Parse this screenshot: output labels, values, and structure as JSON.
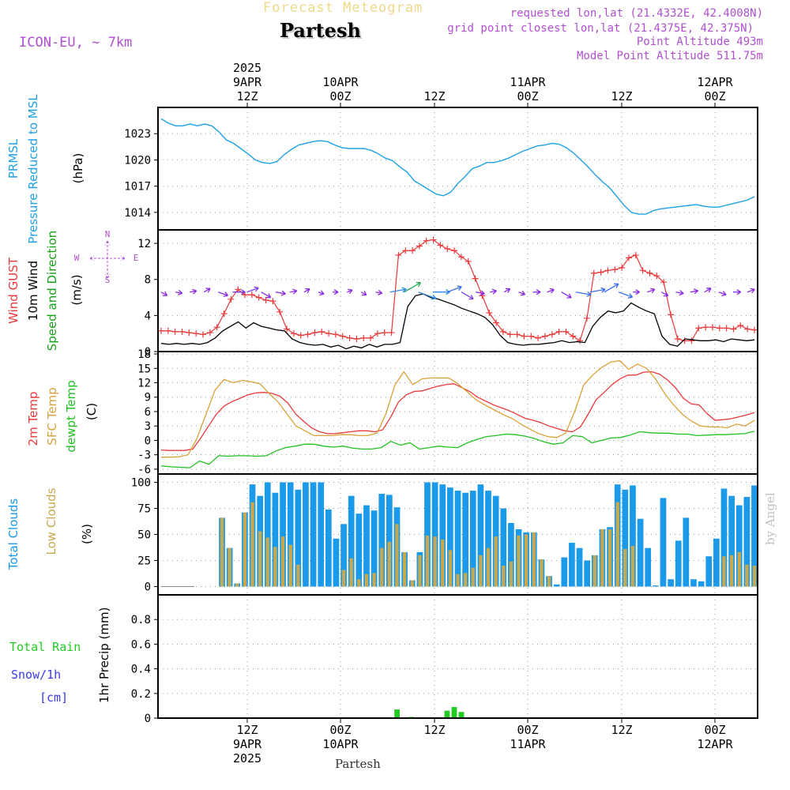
{
  "header": {
    "title": "Forecast Meteogram",
    "place": "Partesh",
    "model": "ICON-EU, ~ 7km",
    "requested": "requested lon,lat (21.4332E, 42.4008N)",
    "grid_point": "grid point closest lon,lat (21.4375E, 42.375N)",
    "point_altitude": "Point Altitude 493m",
    "model_altitude": "Model Point Altitude 511.75m",
    "footer_place": "Partesh",
    "watermark": "by Angel"
  },
  "colors": {
    "pressure": "#1ea0e6",
    "gust": "#e83a3a",
    "wind": "#000000",
    "direction": "#16a016",
    "temp": "#e83a3a",
    "sfc": "#d9a23a",
    "dewpt": "#22c022",
    "total_clouds": "#1a9ae8",
    "low_clouds": "#c8a84e",
    "rain": "#22cc22",
    "snow": "#3a3ae8",
    "purple": "#b050d0"
  },
  "chart_data": [
    {
      "type": "line",
      "panel": "pressure",
      "ylabel_left": [
        "PRMSL",
        "Pressure Reduced to MSL"
      ],
      "unit": "(hPa)",
      "ylim": [
        1012,
        1026
      ],
      "yticks": [
        1014,
        1017,
        1020,
        1023
      ],
      "grid": true,
      "series": [
        {
          "values": [
            1024.7,
            1024.2,
            1023.9,
            1023.9,
            1024.1,
            1023.9,
            1024.1,
            1023.9,
            1023.2,
            1022.3,
            1021.9,
            1021.3,
            1020.7,
            1020.0,
            1019.7,
            1019.6,
            1019.8,
            1020.6,
            1021.2,
            1021.7,
            1021.9,
            1022.1,
            1022.2,
            1022.1,
            1021.7,
            1021.4,
            1021.3,
            1021.3,
            1021.3,
            1021.1,
            1020.7,
            1020.2,
            1019.9,
            1019.2,
            1018.6,
            1017.6,
            1017.1,
            1016.6,
            1016.1,
            1015.9,
            1016.3,
            1017.3,
            1018.1,
            1019.0,
            1019.3,
            1019.7,
            1019.7,
            1019.9,
            1020.2,
            1020.6,
            1021.0,
            1021.3,
            1021.6,
            1021.7,
            1021.9,
            1021.8,
            1021.4,
            1020.8,
            1020.0,
            1019.2,
            1018.3,
            1017.5,
            1016.8,
            1015.8,
            1014.8,
            1014.0,
            1013.8,
            1013.8,
            1014.2,
            1014.4,
            1014.5,
            1014.6,
            1014.7,
            1014.8,
            1014.9,
            1014.7,
            1014.6,
            1014.6,
            1014.8,
            1015.0,
            1015.2,
            1015.4,
            1015.8
          ]
        }
      ]
    },
    {
      "type": "line",
      "panel": "wind",
      "ylabel_left": [
        "Wind GUST",
        "10m Wind",
        "Speed and Direction"
      ],
      "unit": "(m/s)",
      "compass": {
        "n": "N",
        "e": "E",
        "s": "S",
        "w": "W"
      },
      "ylim": [
        0,
        13.5
      ],
      "yticks": [
        0,
        4,
        8,
        12
      ],
      "grid": true,
      "series": [
        {
          "name": "Wind GUST",
          "values": [
            2.3,
            2.3,
            2.2,
            2.2,
            2.1,
            2.0,
            1.9,
            2.1,
            2.7,
            4.2,
            5.8,
            6.9,
            6.3,
            6.3,
            6.0,
            5.7,
            5.6,
            4.4,
            2.5,
            2.0,
            1.8,
            1.9,
            2.1,
            2.2,
            2.0,
            1.9,
            1.7,
            1.5,
            1.4,
            1.5,
            1.5,
            2.0,
            2.1,
            2.1,
            10.7,
            11.2,
            11.2,
            11.7,
            12.3,
            12.4,
            11.8,
            11.4,
            11.2,
            10.5,
            10.0,
            8.1,
            6.2,
            4.3,
            3.2,
            2.2,
            1.9,
            1.9,
            1.7,
            1.7,
            1.5,
            1.7,
            1.9,
            2.2,
            2.2,
            1.7,
            1.2,
            3.7,
            8.7,
            8.8,
            9.0,
            9.1,
            9.3,
            10.4,
            10.7,
            9.0,
            8.7,
            8.4,
            7.7,
            4.1,
            1.4,
            1.2,
            1.2,
            2.6,
            2.7,
            2.7,
            2.6,
            2.6,
            2.5,
            2.9,
            2.5,
            2.4
          ]
        },
        {
          "name": "10m Wind",
          "values": [
            0.9,
            0.8,
            0.9,
            0.8,
            0.9,
            0.8,
            1.0,
            1.5,
            2.3,
            2.8,
            3.3,
            2.6,
            3.2,
            2.8,
            2.6,
            2.4,
            2.3,
            1.4,
            1.0,
            0.8,
            0.7,
            0.8,
            0.5,
            0.7,
            0.3,
            0.6,
            0.4,
            0.8,
            0.5,
            0.8,
            0.8,
            1.0,
            5.0,
            6.2,
            6.4,
            6.0,
            5.8,
            5.5,
            5.2,
            4.8,
            4.5,
            4.2,
            3.8,
            3.0,
            1.8,
            1.0,
            0.8,
            0.7,
            0.8,
            0.8,
            0.9,
            1.0,
            1.2,
            1.0,
            1.1,
            1.0,
            2.8,
            3.8,
            4.5,
            4.3,
            4.5,
            5.4,
            4.9,
            4.5,
            4.2,
            1.7,
            0.8,
            0.6,
            1.4,
            1.3,
            1.2,
            1.2,
            1.3,
            1.1,
            1.4,
            1.3,
            1.2,
            1.3
          ]
        },
        {
          "name": "Direction",
          "values": [
            6.6,
            6.6,
            6.6,
            6.6,
            6.6,
            6.6,
            6.6,
            6.6,
            6.6,
            6.6,
            6.6,
            6.6,
            6.6,
            6.6,
            6.6,
            6.6,
            6.6,
            6.6,
            6.6,
            6.6,
            6.6,
            6.6,
            6.6,
            6.6,
            6.6,
            6.6,
            6.6,
            6.6,
            6.6,
            6.6,
            6.6,
            6.6,
            6.6,
            6.6,
            6.6,
            6.6,
            6.6,
            6.6,
            6.6,
            6.6,
            6.6,
            6.6,
            6.6,
            6.6,
            6.6,
            6.6,
            6.6,
            6.6,
            6.6,
            6.6,
            6.6,
            6.6,
            6.6,
            6.6,
            6.6,
            6.6,
            6.6,
            6.6,
            6.6,
            6.6,
            6.6,
            6.6,
            6.6,
            6.6,
            6.6,
            6.6,
            6.6,
            6.6,
            6.6,
            6.6,
            6.6,
            6.6,
            6.6,
            6.6,
            6.6,
            6.6,
            6.6,
            6.6,
            6.6,
            6.6,
            6.6,
            6.6,
            6.6,
            6.6
          ]
        }
      ]
    },
    {
      "type": "line",
      "panel": "temperature",
      "ylabel_left": [
        "2m Temp",
        "SFC Temp",
        "dewpt Temp"
      ],
      "unit": "(C)",
      "ylim": [
        -7,
        18.5
      ],
      "yticks": [
        -6,
        -3,
        0,
        3,
        6,
        9,
        12,
        15,
        18
      ],
      "grid": true,
      "series": [
        {
          "name": "2m Temp",
          "values": [
            -2.0,
            -2.1,
            -2.1,
            -2.1,
            -1.8,
            0.5,
            3.0,
            5.5,
            7.2,
            8.1,
            8.8,
            9.5,
            9.9,
            10.0,
            9.8,
            9.2,
            7.8,
            5.5,
            4.0,
            2.6,
            1.8,
            1.4,
            1.4,
            1.6,
            1.8,
            2.0,
            2.0,
            1.8,
            2.2,
            4.8,
            8.0,
            9.5,
            10.2,
            10.3,
            10.8,
            11.3,
            11.6,
            11.8,
            11.0,
            10.2,
            9.0,
            8.2,
            7.4,
            6.8,
            6.2,
            5.4,
            4.6,
            4.2,
            3.7,
            3.0,
            2.5,
            2.0,
            1.8,
            2.8,
            5.5,
            8.5,
            10.0,
            11.6,
            12.8,
            13.6,
            13.6,
            14.2,
            14.3,
            13.8,
            12.6,
            11.0,
            8.8,
            7.6,
            7.4,
            5.6,
            4.2,
            4.3,
            4.5,
            4.9,
            5.3,
            5.8
          ]
        },
        {
          "name": "SFC Temp",
          "values": [
            -3.5,
            -3.5,
            -3.4,
            -3.0,
            0.5,
            5.5,
            10.5,
            12.7,
            12.0,
            12.5,
            12.2,
            11.8,
            9.8,
            8.0,
            5.5,
            3.0,
            2.0,
            1.0,
            1.0,
            1.0,
            1.2,
            1.2,
            1.0,
            1.0,
            1.5,
            5.5,
            11.5,
            14.3,
            11.6,
            12.8,
            13.0,
            13.0,
            13.0,
            11.8,
            10.2,
            8.5,
            7.4,
            6.4,
            5.4,
            4.6,
            3.4,
            2.4,
            1.4,
            0.8,
            0.6,
            1.5,
            6.0,
            11.5,
            13.6,
            15.2,
            16.3,
            16.6,
            14.8,
            15.9,
            15.0,
            12.8,
            9.8,
            7.4,
            5.4,
            4.0,
            3.0,
            2.8,
            2.8,
            2.6,
            3.4,
            3.0,
            4.2
          ]
        },
        {
          "name": "dewpt Temp",
          "values": [
            -5.3,
            -5.5,
            -5.6,
            -5.7,
            -4.3,
            -5.0,
            -3.2,
            -3.3,
            -3.2,
            -3.2,
            -3.3,
            -3.2,
            -2.2,
            -1.5,
            -1.2,
            -0.8,
            -0.8,
            -1.2,
            -1.4,
            -1.2,
            -1.6,
            -1.8,
            -1.8,
            -1.5,
            -0.2,
            -1.0,
            -0.5,
            -1.8,
            -1.5,
            -1.2,
            -1.4,
            -1.5,
            -0.5,
            0.2,
            0.8,
            1.0,
            1.3,
            1.2,
            0.9,
            0.4,
            -0.3,
            -0.8,
            -0.5,
            1.0,
            0.8,
            -0.5,
            0.0,
            0.5,
            0.6,
            1.1,
            1.8,
            1.6,
            1.5,
            1.5,
            1.3,
            1.3,
            1.0,
            1.1,
            1.2,
            1.2,
            1.3,
            1.4,
            1.9
          ]
        }
      ]
    },
    {
      "type": "bar",
      "panel": "clouds",
      "ylabel_left": [
        "Total Clouds",
        "Low Clouds"
      ],
      "unit": "(%)",
      "ylim": [
        -8,
        108
      ],
      "yticks": [
        0,
        25,
        50,
        75,
        100
      ],
      "grid": true,
      "series": [
        {
          "name": "Total Clouds",
          "values": [
            0,
            0,
            0,
            0,
            0,
            0,
            0,
            0,
            66,
            37,
            3,
            71,
            98,
            87,
            100,
            90,
            100,
            100,
            93,
            100,
            100,
            100,
            74,
            46,
            60,
            87,
            70,
            78,
            73,
            89,
            88,
            76,
            33,
            6,
            33,
            100,
            100,
            98,
            95,
            92,
            90,
            92,
            98,
            92,
            87,
            75,
            61,
            55,
            52,
            52,
            26,
            10,
            2,
            28,
            42,
            37,
            25,
            30,
            55,
            57,
            98,
            93,
            97,
            65,
            37,
            1,
            85,
            7,
            44,
            66,
            7,
            5,
            29,
            46,
            94,
            87,
            78,
            86,
            97
          ]
        },
        {
          "name": "Low Clouds",
          "values": [
            0,
            0,
            0,
            0,
            0,
            0,
            0,
            0,
            66,
            37,
            3,
            71,
            81,
            53,
            47,
            38,
            48,
            40,
            21,
            0,
            0,
            0,
            0,
            0,
            16,
            27,
            7,
            12,
            13,
            37,
            43,
            60,
            33,
            6,
            30,
            49,
            48,
            45,
            35,
            12,
            13,
            18,
            30,
            37,
            48,
            20,
            24,
            49,
            50,
            52,
            26,
            10,
            0,
            0,
            0,
            0,
            0,
            30,
            55,
            55,
            81,
            36,
            39,
            0,
            0,
            0,
            0,
            0,
            0,
            0,
            0,
            0,
            0,
            0,
            29,
            30,
            33,
            21,
            20
          ]
        }
      ]
    },
    {
      "type": "bar",
      "panel": "precip",
      "ylabel_left": [
        "Total  Rain",
        "Snow/1h",
        "[cm]"
      ],
      "ylabel": "1hr Precip (mm)",
      "ylim": [
        0,
        1.0
      ],
      "yticks": [
        "0",
        "0.2",
        "0.4",
        "0.6",
        "0.8"
      ],
      "grid": true,
      "series": [
        {
          "name": "Total Rain",
          "values": [
            0,
            0,
            0,
            0,
            0,
            0,
            0,
            0,
            0,
            0,
            0,
            0,
            0,
            0,
            0,
            0,
            0,
            0,
            0,
            0,
            0,
            0,
            0,
            0,
            0,
            0,
            0,
            0,
            0,
            0,
            0,
            0,
            0,
            0.07,
            0,
            0.01,
            0,
            0,
            0,
            0,
            0.06,
            0.09,
            0.05,
            0,
            0,
            0,
            0,
            0,
            0,
            0,
            0,
            0,
            0,
            0,
            0,
            0,
            0,
            0,
            0,
            0,
            0,
            0,
            0,
            0,
            0,
            0,
            0,
            0,
            0,
            0,
            0,
            0,
            0,
            0,
            0,
            0,
            0,
            0,
            0,
            0,
            0,
            0,
            0,
            0
          ]
        }
      ]
    }
  ],
  "time_axis": {
    "top_labels": [
      {
        "lines": [
          "2025",
          "9APR",
          "12Z"
        ]
      },
      {
        "lines": [
          "10APR",
          "00Z"
        ]
      },
      {
        "lines": [
          "12Z"
        ]
      },
      {
        "lines": [
          "11APR",
          "00Z"
        ]
      },
      {
        "lines": [
          "12Z"
        ]
      },
      {
        "lines": [
          "12APR",
          "00Z"
        ]
      }
    ],
    "bottom_labels": [
      {
        "lines": [
          "12Z",
          "9APR",
          "2025"
        ]
      },
      {
        "lines": [
          "00Z",
          "10APR"
        ]
      },
      {
        "lines": [
          "12Z"
        ]
      },
      {
        "lines": [
          "00Z",
          "11APR"
        ]
      },
      {
        "lines": [
          "12Z"
        ]
      },
      {
        "lines": [
          "00Z",
          "12APR"
        ]
      }
    ]
  }
}
